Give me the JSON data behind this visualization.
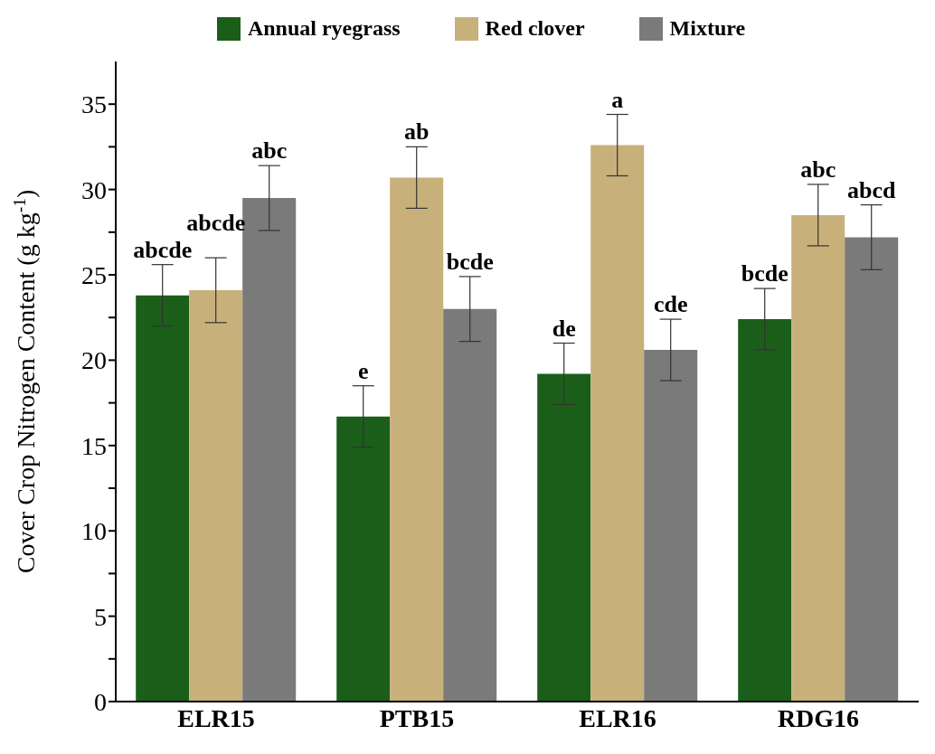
{
  "chart_data": {
    "type": "bar",
    "ylabel": "Cover Crop Nitrogen Content (g kg$^{-1}$)",
    "categories": [
      "ELR15",
      "PTB15",
      "ELR16",
      "RDG16"
    ],
    "series": [
      {
        "name": "Annual ryegrass",
        "color": "#1a5e1a",
        "values": [
          23.8,
          16.7,
          19.2,
          22.4
        ],
        "errors": [
          1.8,
          1.8,
          1.8,
          1.8
        ],
        "value_labels": [
          "abcde",
          "e",
          "de",
          "bcde"
        ]
      },
      {
        "name": "Red clover",
        "color": "#c8b07a",
        "values": [
          24.1,
          30.7,
          32.6,
          28.5
        ],
        "errors": [
          1.9,
          1.8,
          1.8,
          1.8
        ],
        "value_labels": [
          "abcde",
          "ab",
          "a",
          "abc"
        ]
      },
      {
        "name": "Mixture",
        "color": "#7a7a7a",
        "values": [
          29.5,
          23.0,
          20.6,
          27.2
        ],
        "errors": [
          1.9,
          1.9,
          1.8,
          1.9
        ],
        "value_labels": [
          "abc",
          "bcde",
          "cde",
          "abcd"
        ]
      }
    ],
    "ylim": [
      0,
      37.5
    ],
    "yticks": [
      0,
      {
        "value": 2.5,
        "label": null
      },
      5,
      {
        "value": 7.5,
        "label": null
      },
      10,
      {
        "value": 12.5,
        "label": null
      },
      15,
      {
        "value": 17.5,
        "label": null
      },
      20,
      {
        "value": 22.5,
        "label": null
      },
      25,
      {
        "value": 27.5,
        "label": null
      },
      30,
      {
        "value": 32.5,
        "label": null
      },
      35
    ],
    "grid": false,
    "legend": "top"
  }
}
